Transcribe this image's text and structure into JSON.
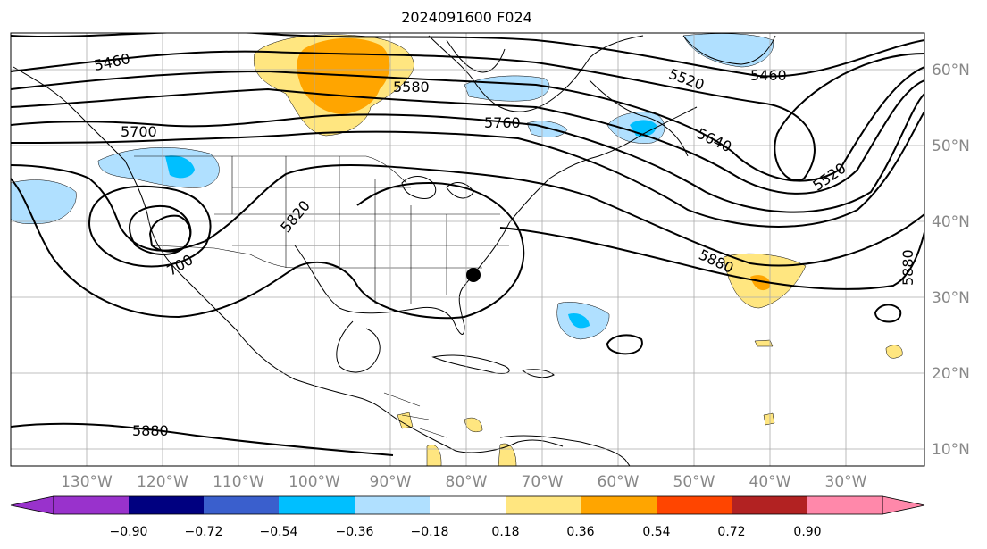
{
  "title": "2024091600 F024",
  "map": {
    "lon_range": [
      -140,
      -20
    ],
    "lat_range": [
      7,
      65
    ],
    "lat_ticks": [
      {
        "value": 60,
        "label": "60°N"
      },
      {
        "value": 50,
        "label": "50°N"
      },
      {
        "value": 40,
        "label": "40°N"
      },
      {
        "value": 30,
        "label": "30°N"
      },
      {
        "value": 20,
        "label": "20°N"
      },
      {
        "value": 10,
        "label": "10°N"
      }
    ],
    "lon_ticks": [
      {
        "value": -130,
        "label": "130°W"
      },
      {
        "value": -120,
        "label": "120°W"
      },
      {
        "value": -110,
        "label": "110°W"
      },
      {
        "value": -100,
        "label": "100°W"
      },
      {
        "value": -90,
        "label": "90°W"
      },
      {
        "value": -80,
        "label": "80°W"
      },
      {
        "value": -70,
        "label": "70°W"
      },
      {
        "value": -60,
        "label": "60°W"
      },
      {
        "value": -50,
        "label": "50°W"
      },
      {
        "value": -40,
        "label": "40°W"
      },
      {
        "value": -30,
        "label": "30°W"
      }
    ],
    "contour_labels": [
      "5460",
      "5700",
      "5580",
      "5760",
      "5520",
      "5460",
      "5640",
      "5520",
      "5820",
      "700",
      "5880",
      "5880",
      "5880"
    ],
    "storm_marker": {
      "lon": -80,
      "lat": 32.5
    },
    "grid_color": "#aaaaaa"
  },
  "colorbar": {
    "tick_labels": [
      "−0.90",
      "−0.72",
      "−0.54",
      "−0.36",
      "−0.18",
      "0.18",
      "0.36",
      "0.54",
      "0.72",
      "0.90"
    ],
    "colors": [
      "#9932cc",
      "#000080",
      "#3a5fcd",
      "#00bfff",
      "#b0e0ff",
      "#ffffff",
      "#ffe680",
      "#ffa500",
      "#ff4500",
      "#b22222",
      "#ff88aa"
    ]
  }
}
